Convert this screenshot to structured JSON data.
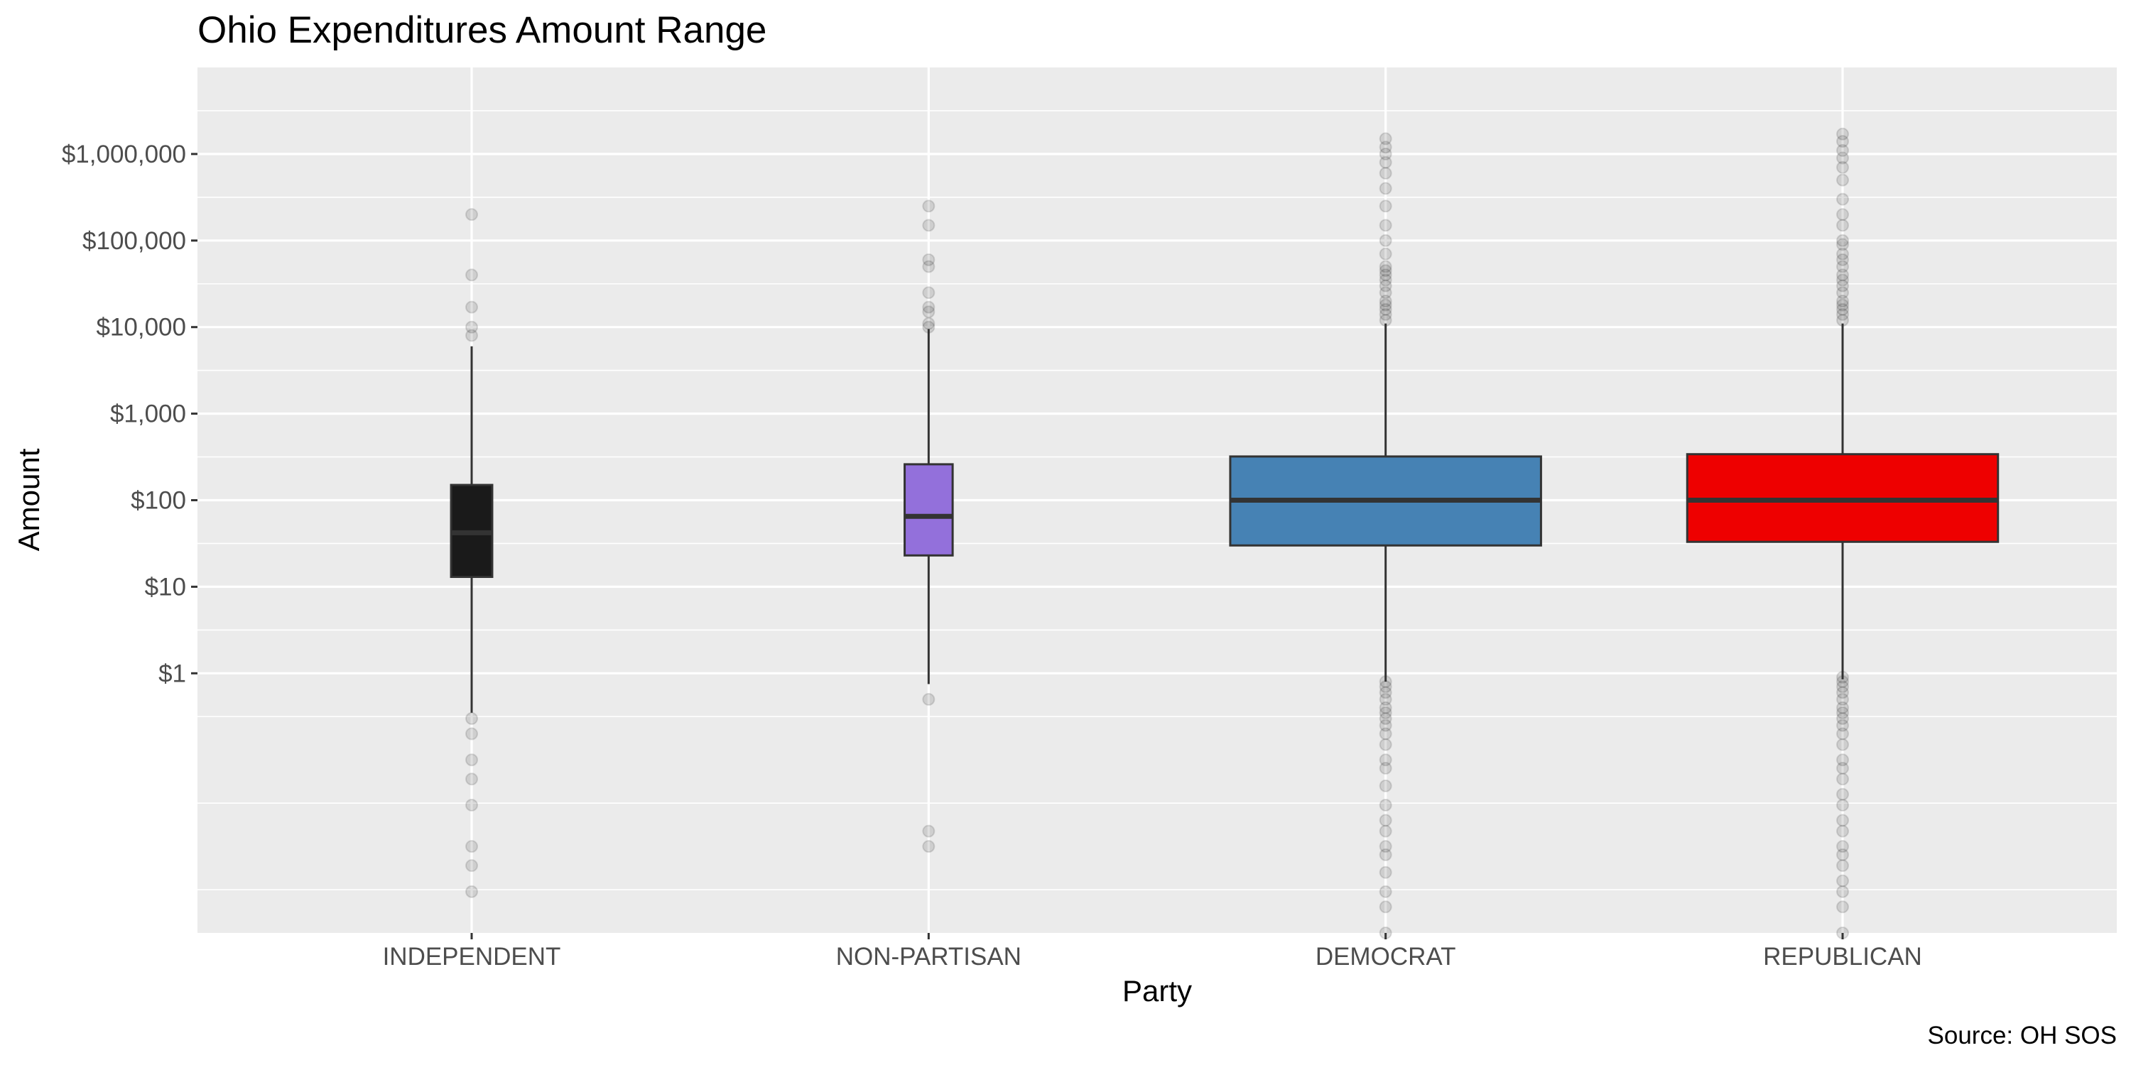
{
  "chart_data": {
    "type": "boxplot",
    "title": "Ohio Expenditures Amount Range",
    "xlabel": "Party",
    "ylabel": "Amount",
    "caption": "Source: OH SOS",
    "y_scale": "log10",
    "ylim": [
      0.001,
      10000000
    ],
    "y_ticks": [
      1,
      10,
      100,
      1000,
      10000,
      100000,
      1000000
    ],
    "y_tick_labels": [
      "$1",
      "$10",
      "$100",
      "$1,000",
      "$10,000",
      "$100,000",
      "$1,000,000"
    ],
    "grid": true,
    "legend": "none",
    "categories": [
      "INDEPENDENT",
      "NON-PARTISAN",
      "DEMOCRAT",
      "REPUBLICAN"
    ],
    "series": [
      {
        "category": "INDEPENDENT",
        "color": "#1a1a1a",
        "whisker_low": 0.35,
        "q1": 13,
        "median": 42,
        "q3": 150,
        "whisker_high": 6000,
        "outliers": [
          0.003,
          0.006,
          0.01,
          0.03,
          0.06,
          0.1,
          0.2,
          0.3,
          8000,
          10000,
          17000,
          40000,
          200000
        ]
      },
      {
        "category": "NON-PARTISAN",
        "color": "#9370db",
        "whisker_low": 0.75,
        "q1": 23,
        "median": 65,
        "q3": 260,
        "whisker_high": 9500,
        "outliers": [
          0.01,
          0.015,
          0.5,
          10000,
          11000,
          15000,
          17000,
          25000,
          50000,
          60000,
          150000,
          250000
        ]
      },
      {
        "category": "DEMOCRAT",
        "color": "#4682b4",
        "whisker_low": 0.8,
        "q1": 30,
        "median": 100,
        "q3": 320,
        "whisker_high": 11000,
        "outliers": [
          0.001,
          0.002,
          0.003,
          0.005,
          0.008,
          0.01,
          0.015,
          0.02,
          0.03,
          0.05,
          0.08,
          0.1,
          0.15,
          0.2,
          0.25,
          0.3,
          0.35,
          0.4,
          0.5,
          0.6,
          0.7,
          0.8,
          12000,
          14000,
          16000,
          18000,
          20000,
          25000,
          30000,
          35000,
          40000,
          45000,
          50000,
          70000,
          100000,
          150000,
          250000,
          400000,
          600000,
          800000,
          1000000,
          1200000,
          1500000
        ]
      },
      {
        "category": "REPUBLICAN",
        "color": "#ee0000",
        "whisker_low": 0.85,
        "q1": 33,
        "median": 100,
        "q3": 340,
        "whisker_high": 11000,
        "outliers": [
          0.001,
          0.002,
          0.003,
          0.004,
          0.006,
          0.008,
          0.01,
          0.015,
          0.02,
          0.03,
          0.04,
          0.06,
          0.08,
          0.1,
          0.15,
          0.2,
          0.25,
          0.3,
          0.35,
          0.4,
          0.5,
          0.6,
          0.7,
          0.8,
          0.9,
          12000,
          14000,
          16000,
          18000,
          20000,
          25000,
          30000,
          35000,
          40000,
          50000,
          60000,
          70000,
          90000,
          100000,
          150000,
          200000,
          300000,
          500000,
          700000,
          900000,
          1100000,
          1400000,
          1700000
        ]
      }
    ]
  }
}
